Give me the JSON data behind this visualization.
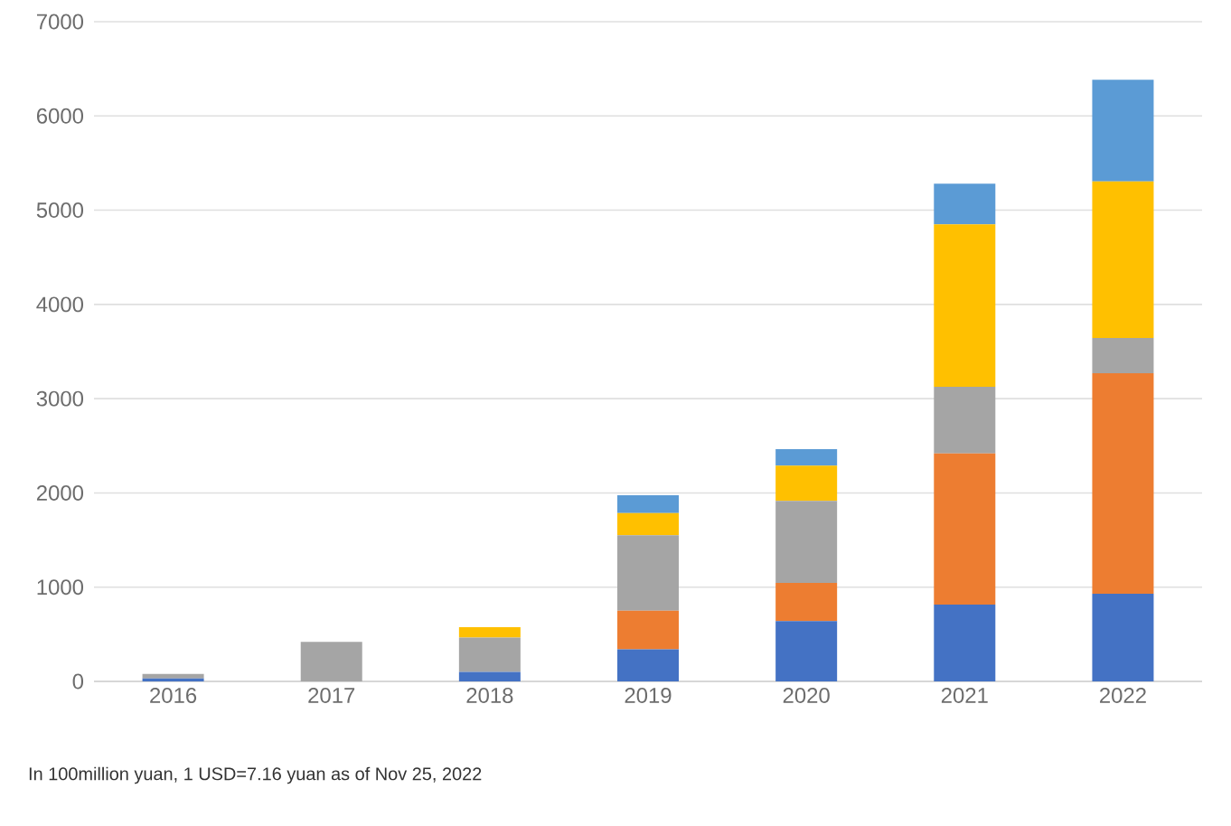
{
  "chart_data": {
    "type": "bar",
    "stacked": true,
    "categories": [
      "2016",
      "2017",
      "2018",
      "2019",
      "2020",
      "2021",
      "2022"
    ],
    "series": [
      {
        "color": "#4472c4",
        "values": [
          30,
          0,
          100,
          340,
          640,
          815,
          930
        ]
      },
      {
        "color": "#ed7d31",
        "values": [
          0,
          0,
          0,
          410,
          405,
          1605,
          2340
        ]
      },
      {
        "color": "#a5a5a5",
        "values": [
          50,
          420,
          365,
          800,
          870,
          705,
          375
        ]
      },
      {
        "color": "#ffc000",
        "values": [
          0,
          0,
          110,
          235,
          375,
          1725,
          1660
        ]
      },
      {
        "color": "#5b9bd5",
        "values": [
          0,
          0,
          0,
          190,
          175,
          430,
          1080
        ]
      }
    ],
    "ylim": [
      0,
      7000
    ],
    "yticks": [
      0,
      1000,
      2000,
      3000,
      4000,
      5000,
      6000,
      7000
    ],
    "grid": "y",
    "annotations": [
      "In 100million yuan, 1 USD=7.16 yuan as of Nov 25, 2022"
    ]
  }
}
